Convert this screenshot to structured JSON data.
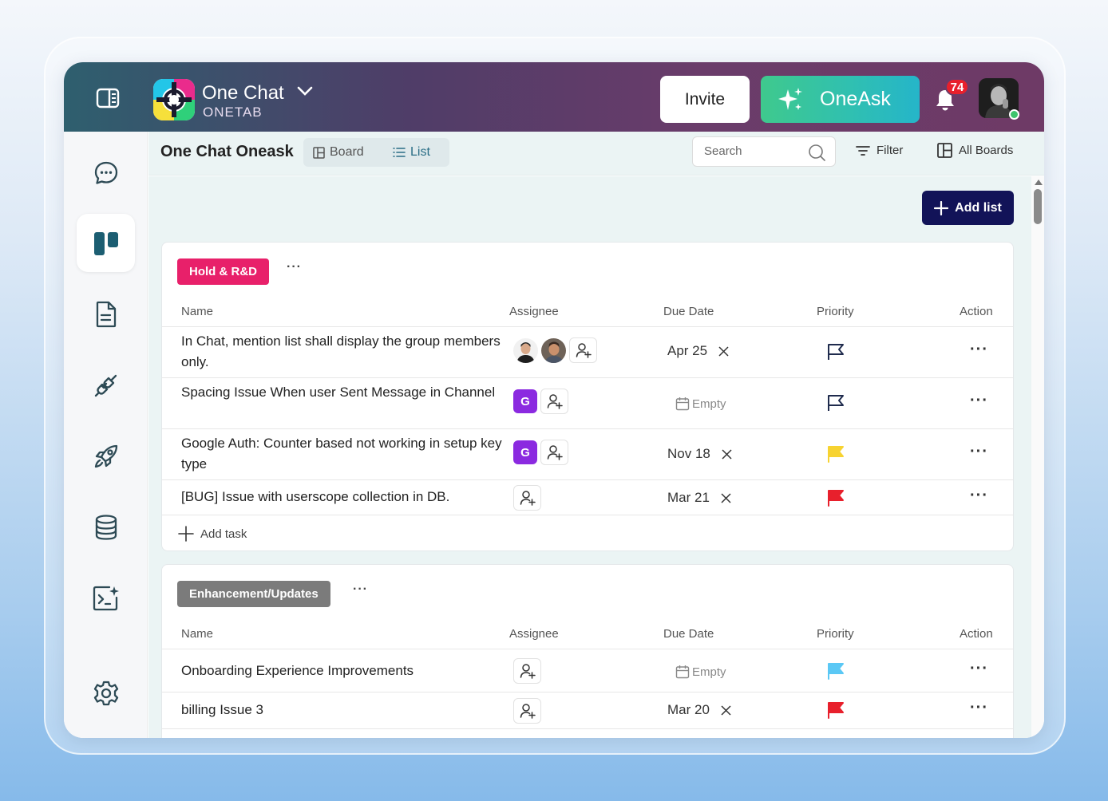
{
  "header": {
    "app_name": "One Chat",
    "app_sub": "ONETAB",
    "invite_label": "Invite",
    "oneask_label": "OneAsk",
    "notification_count": "74",
    "brand_gradient": [
      "#2e5f6e",
      "#6a3c6a"
    ],
    "oneask_gradient": [
      "#3fc98d",
      "#25b5c9"
    ]
  },
  "sidebar": {
    "items": [
      {
        "name": "chat",
        "icon": "chat-bubble-icon",
        "active": false
      },
      {
        "name": "boards",
        "icon": "board-icon",
        "active": true
      },
      {
        "name": "docs",
        "icon": "document-icon",
        "active": false
      },
      {
        "name": "integrations",
        "icon": "plug-icon",
        "active": false
      },
      {
        "name": "launch",
        "icon": "rocket-icon",
        "active": false
      },
      {
        "name": "database",
        "icon": "database-icon",
        "active": false
      },
      {
        "name": "ai-terminal",
        "icon": "terminal-sparkle-icon",
        "active": false
      },
      {
        "name": "settings",
        "icon": "gear-icon",
        "active": false
      }
    ]
  },
  "topbar": {
    "title": "One Chat Oneask",
    "board_label": "Board",
    "list_label": "List",
    "search_placeholder": "Search",
    "filter_label": "Filter",
    "all_boards_label": "All Boards"
  },
  "add_list_label": "Add list",
  "columns": {
    "name": "Name",
    "assignee": "Assignee",
    "due_date": "Due Date",
    "priority": "Priority",
    "action": "Action"
  },
  "sections": [
    {
      "tag": "Hold & R&D",
      "tag_color": "#e8206a",
      "more": "···",
      "add_task_label": "Add task",
      "tasks": [
        {
          "name": "In Chat, mention list shall display the group members only.",
          "assignees": [
            "photo",
            "photo"
          ],
          "due": "Apr 25",
          "priority_color": "outline"
        },
        {
          "name": "Spacing Issue When user Sent Message in Channel",
          "assignees": [
            "G"
          ],
          "due": "Empty",
          "priority_color": "outline"
        },
        {
          "name": "Google Auth: Counter based not working in setup key type",
          "assignees": [
            "G"
          ],
          "due": "Nov 18",
          "priority_color": "#f7d331"
        },
        {
          "name": "[BUG] Issue with userscope collection in DB.",
          "assignees": [],
          "due": "Mar 21",
          "priority_color": "#e8202c"
        }
      ]
    },
    {
      "tag": "Enhancement/Updates",
      "tag_color": "#7b7b7b",
      "more": "···",
      "tasks": [
        {
          "name": "Onboarding Experience Improvements",
          "assignees": [],
          "due": "Empty",
          "priority_color": "#5bc8f5"
        },
        {
          "name": "billing Issue 3",
          "assignees": [],
          "due": "Mar 20",
          "priority_color": "#e8202c"
        }
      ]
    }
  ]
}
